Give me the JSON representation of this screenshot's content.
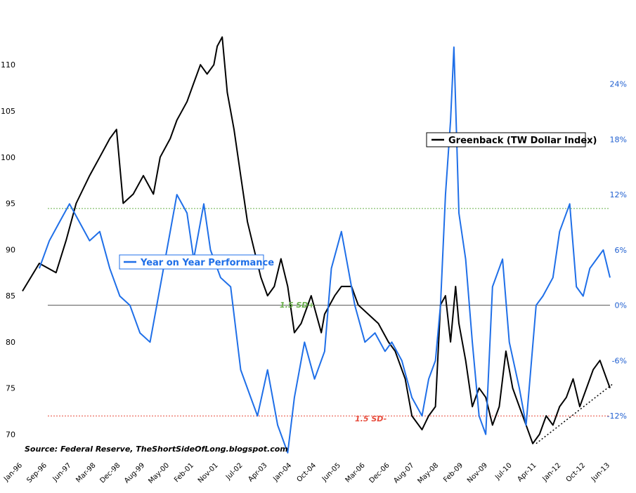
{
  "chart_data": {
    "type": "line",
    "source": "Source: Federal Reserve, TheShortSideOfLong.blogspot.com",
    "x_tick_labels": [
      "Jan-96",
      "Sep-96",
      "Jun-97",
      "Mar-98",
      "Dec-98",
      "Aug-99",
      "May-00",
      "Feb-01",
      "Nov-01",
      "Jul-02",
      "Apr-03",
      "Jan-04",
      "Oct-04",
      "Jun-05",
      "Mar-06",
      "Dec-06",
      "Aug-07",
      "May-08",
      "Feb-09",
      "Nov-09",
      "Jul-10",
      "Apr-11",
      "Jan-12",
      "Oct-12",
      "Jun-13"
    ],
    "left_axis": {
      "ticks": [
        70,
        75,
        80,
        85,
        90,
        95,
        100,
        105,
        110
      ],
      "range": [
        67.6,
        116.4
      ]
    },
    "right_axis": {
      "ticks": [
        "24%",
        "18%",
        "12%",
        "6%",
        "0%",
        "-6%",
        "-12%"
      ],
      "values": [
        24,
        18,
        12,
        6,
        0,
        -6,
        -12
      ],
      "range": [
        -16.4,
        32.5
      ]
    },
    "series": [
      {
        "name": "Greenback (TW Dollar Index)",
        "axis": "left",
        "color": "#000000",
        "x": [
          1996.0,
          1996.5,
          1997.0,
          1997.3,
          1997.6,
          1998.0,
          1998.3,
          1998.6,
          1998.8,
          1999.0,
          1999.3,
          1999.6,
          1999.9,
          2000.1,
          2000.4,
          2000.6,
          2000.9,
          2001.1,
          2001.3,
          2001.5,
          2001.7,
          2001.8,
          2001.95,
          2002.1,
          2002.3,
          2002.5,
          2002.7,
          2002.9,
          2003.1,
          2003.3,
          2003.5,
          2003.7,
          2003.9,
          2004.1,
          2004.3,
          2004.6,
          2004.9,
          2005.0,
          2005.3,
          2005.5,
          2005.8,
          2006.0,
          2006.3,
          2006.6,
          2006.9,
          2007.1,
          2007.4,
          2007.6,
          2007.9,
          2008.1,
          2008.3,
          2008.45,
          2008.6,
          2008.75,
          2008.9,
          2009.0,
          2009.2,
          2009.4,
          2009.6,
          2009.8,
          2010.0,
          2010.2,
          2010.4,
          2010.6,
          2010.8,
          2011.0,
          2011.2,
          2011.4,
          2011.6,
          2011.8,
          2012.0,
          2012.2,
          2012.4,
          2012.6,
          2012.8,
          2013.0,
          2013.2,
          2013.4,
          2013.5
        ],
        "y": [
          85.5,
          88.5,
          87.5,
          91,
          95,
          98,
          100,
          102,
          103,
          95,
          96,
          98,
          96,
          100,
          102,
          104,
          106,
          108,
          110,
          109,
          110,
          112,
          113,
          107,
          103,
          98,
          93,
          90,
          87,
          85,
          86,
          89,
          86,
          81,
          82,
          85,
          81,
          83,
          85,
          86,
          86,
          84,
          83,
          82,
          80,
          79,
          76,
          72,
          70.5,
          72,
          73,
          84,
          85,
          80,
          86,
          82,
          78,
          73,
          75,
          74,
          71,
          73,
          79,
          75,
          73,
          71,
          69,
          70,
          72,
          71,
          73,
          74,
          76,
          73,
          75,
          77,
          78,
          76,
          75
        ]
      },
      {
        "name": "Year on Year Performance",
        "axis": "right",
        "color": "#1f6fe8",
        "x": [
          1996.5,
          1996.8,
          1997.1,
          1997.4,
          1997.7,
          1998.0,
          1998.3,
          1998.6,
          1998.9,
          1999.2,
          1999.5,
          1999.8,
          2000.1,
          2000.4,
          2000.6,
          2000.9,
          2001.1,
          2001.4,
          2001.6,
          2001.9,
          2002.2,
          2002.5,
          2002.8,
          2003.0,
          2003.3,
          2003.6,
          2003.9,
          2004.1,
          2004.4,
          2004.7,
          2005.0,
          2005.2,
          2005.5,
          2005.7,
          2005.9,
          2006.2,
          2006.5,
          2006.8,
          2007.0,
          2007.3,
          2007.6,
          2007.9,
          2008.1,
          2008.3,
          2008.45,
          2008.6,
          2008.75,
          2008.85,
          2009.0,
          2009.2,
          2009.4,
          2009.6,
          2009.8,
          2010.0,
          2010.3,
          2010.5,
          2010.8,
          2011.0,
          2011.3,
          2011.5,
          2011.8,
          2012.0,
          2012.3,
          2012.5,
          2012.7,
          2012.9,
          2013.1,
          2013.3,
          2013.5
        ],
        "y": [
          4,
          7,
          9,
          11,
          9,
          7,
          8,
          4,
          1,
          0,
          -3,
          -4,
          2,
          8,
          12,
          10,
          5,
          11,
          6,
          3,
          2,
          -7,
          -10,
          -12,
          -7,
          -13,
          -16,
          -10,
          -4,
          -8,
          -5,
          4,
          8,
          4,
          0,
          -4,
          -3,
          -5,
          -4,
          -6,
          -10,
          -12,
          -8,
          -6,
          0,
          12,
          20,
          28,
          10,
          5,
          -4,
          -12,
          -14,
          2,
          5,
          -4,
          -9,
          -13,
          0,
          1,
          3,
          8,
          11,
          2,
          1,
          4,
          5,
          6,
          3
        ]
      }
    ],
    "reference_lines": [
      {
        "label": "1.5 SD+",
        "value": 10.5,
        "color": "#6ab04c"
      },
      {
        "label": "1.5 SD-",
        "value": -12,
        "color": "#e74c3c"
      }
    ],
    "trendline": {
      "x": [
        2011.3,
        2013.6
      ],
      "y": [
        69,
        75.5
      ]
    },
    "legend_primary_label": "Greenback (TW Dollar Index)",
    "legend_secondary_label": "Year on Year Performance"
  }
}
